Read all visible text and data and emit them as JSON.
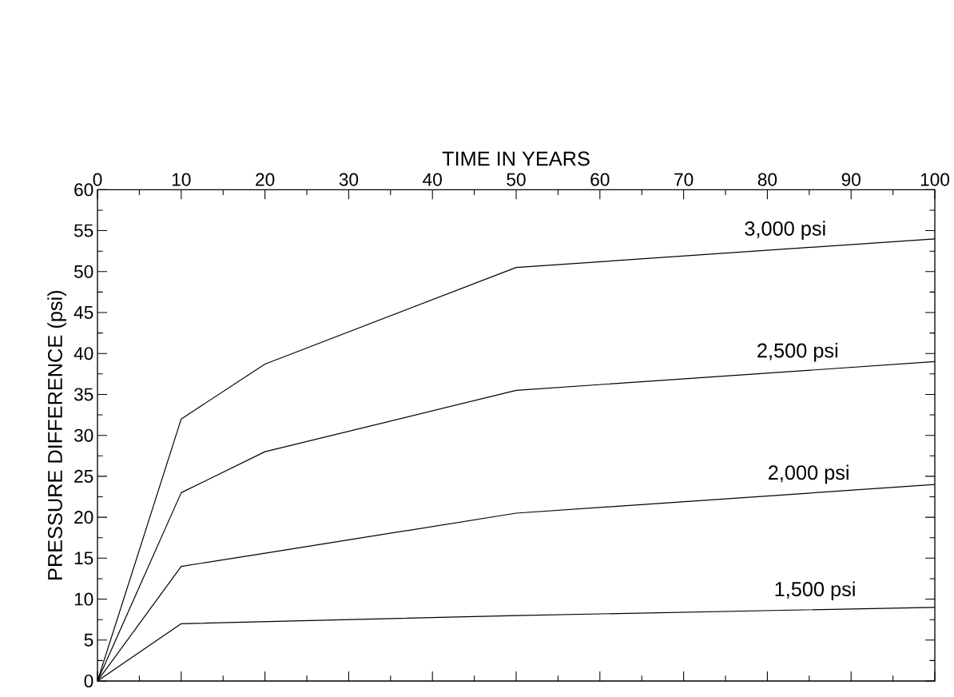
{
  "chart_data": {
    "type": "line",
    "xlabel": "TIME IN YEARS",
    "ylabel": "PRESSURE DIFFERENCE (psi)",
    "xlim": [
      0,
      100
    ],
    "ylim": [
      0,
      60
    ],
    "xticks": [
      0,
      10,
      20,
      30,
      40,
      50,
      60,
      70,
      80,
      90,
      100
    ],
    "yticks": [
      0,
      5,
      10,
      15,
      20,
      25,
      30,
      35,
      40,
      45,
      50,
      55,
      60
    ],
    "grid": false,
    "marker": "none",
    "line_style": "solid",
    "series": [
      {
        "name": "3,000 psi",
        "color": "#000000",
        "x": [
          0,
          10,
          20,
          50,
          100
        ],
        "values": [
          0,
          32,
          38.7,
          50.5,
          54
        ]
      },
      {
        "name": "2,500 psi",
        "color": "#000000",
        "x": [
          0,
          10,
          20,
          50,
          100
        ],
        "values": [
          0,
          23,
          28,
          35.5,
          39
        ]
      },
      {
        "name": "2,000 psi",
        "color": "#000000",
        "x": [
          0,
          10,
          20,
          50,
          100
        ],
        "values": [
          0,
          14,
          15.6,
          20.5,
          24
        ]
      },
      {
        "name": "1,500 psi",
        "color": "#000000",
        "x": [
          0,
          10,
          50,
          100
        ],
        "values": [
          0,
          7,
          8,
          9
        ]
      }
    ]
  }
}
